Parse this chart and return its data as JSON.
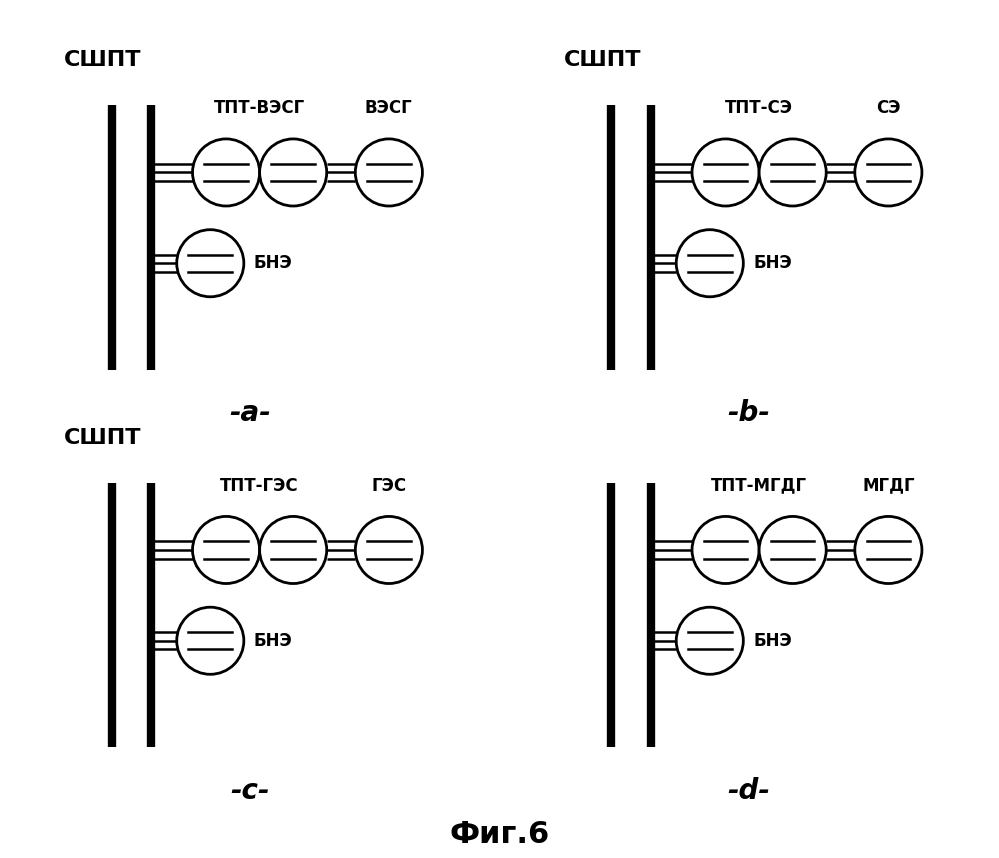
{
  "panels": [
    {
      "id": "a",
      "label": "-a-",
      "shpt_label": "СШПТ",
      "tpt_label": "ТПТ-ВЭСГ",
      "source_label": "ВЭСГ",
      "bne_label": "БНЭ"
    },
    {
      "id": "b",
      "label": "-b-",
      "shpt_label": "СШПТ",
      "tpt_label": "ТПТ-СЭ",
      "source_label": "СЭ",
      "bne_label": "БНЭ"
    },
    {
      "id": "c",
      "label": "-c-",
      "shpt_label": "СШПТ",
      "tpt_label": "ТПТ-ГЭС",
      "source_label": "ГЭС",
      "bne_label": "БНЭ"
    },
    {
      "id": "d",
      "label": "-d-",
      "shpt_label": "",
      "tpt_label": "ТПТ-МГДГ",
      "source_label": "МГДГ",
      "bne_label": "БНЭ"
    }
  ],
  "figure_label": "Фиг.6",
  "bg_color": "#ffffff",
  "line_color": "#000000"
}
